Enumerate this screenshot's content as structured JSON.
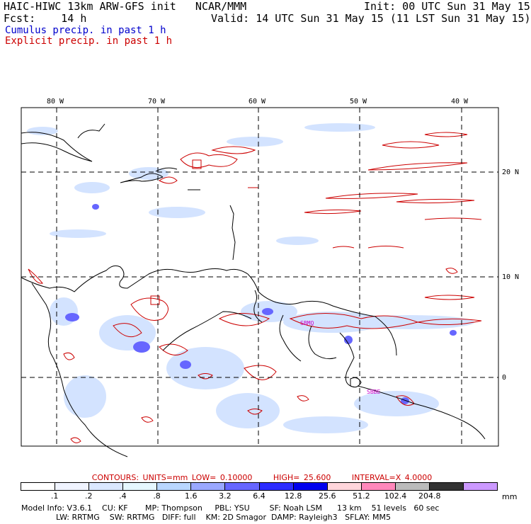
{
  "header": {
    "title": "HAIC-HIWC 13km ARW-GFS init   NCAR/MMM",
    "init": "Init: 00 UTC Sun 31 May 15",
    "fcst_label": "Fcst:    14 h",
    "valid": "Valid: 14 UTC Sun 31 May 15 (11 LST Sun 31 May 15)",
    "legend_cumulus": "Cumulus precip. in past 1 h",
    "legend_explicit": "Explicit precip. in past 1 h"
  },
  "colors": {
    "cumulus": "#0000cc",
    "explicit": "#cc0000",
    "grid": "#000000",
    "coast": "#000000",
    "label_magenta": "#cc00cc"
  },
  "map": {
    "lon_labels": [
      "80 W",
      "70 W",
      "60 W",
      "50 W",
      "40 W"
    ],
    "lat_labels": [
      "20 N",
      "10 N",
      "0"
    ],
    "station_labels": [
      "SBMQ",
      "SBBE"
    ]
  },
  "contours": {
    "units": "CONTOURS:  UNITS=mm  LOW= 0.10000",
    "high": "HIGH=  25.600",
    "interval": "INTERVAL=X  4.0000"
  },
  "colorbar": {
    "unit": "mm",
    "ticks": [
      ".1",
      ".2",
      ".4",
      ".8",
      "1.6",
      "3.2",
      "6.4",
      "12.8",
      "25.6",
      "51.2",
      "102.4",
      "204.8"
    ],
    "colors": [
      "#ffffff",
      "#f0f4ff",
      "#dbe8ff",
      "#e6f8ff",
      "#b9d7ff",
      "#9aa8ff",
      "#6666ff",
      "#2c2cff",
      "#0000ee",
      "#ffd6dc",
      "#ff88bb",
      "#bbbbbb",
      "#333333",
      "#cc99ff"
    ]
  },
  "model_info": {
    "line1": "Model Info: V3.6.1    CU: KF       MP: Thompson     PBL: YSU        SF: Noah LSM      13 km    51 levels   60 sec",
    "line2": "              LW: RRTMG    SW: RRTMG   DIFF: full    KM: 2D Smagor  DAMP: Rayleigh3   SFLAY: MM5"
  }
}
